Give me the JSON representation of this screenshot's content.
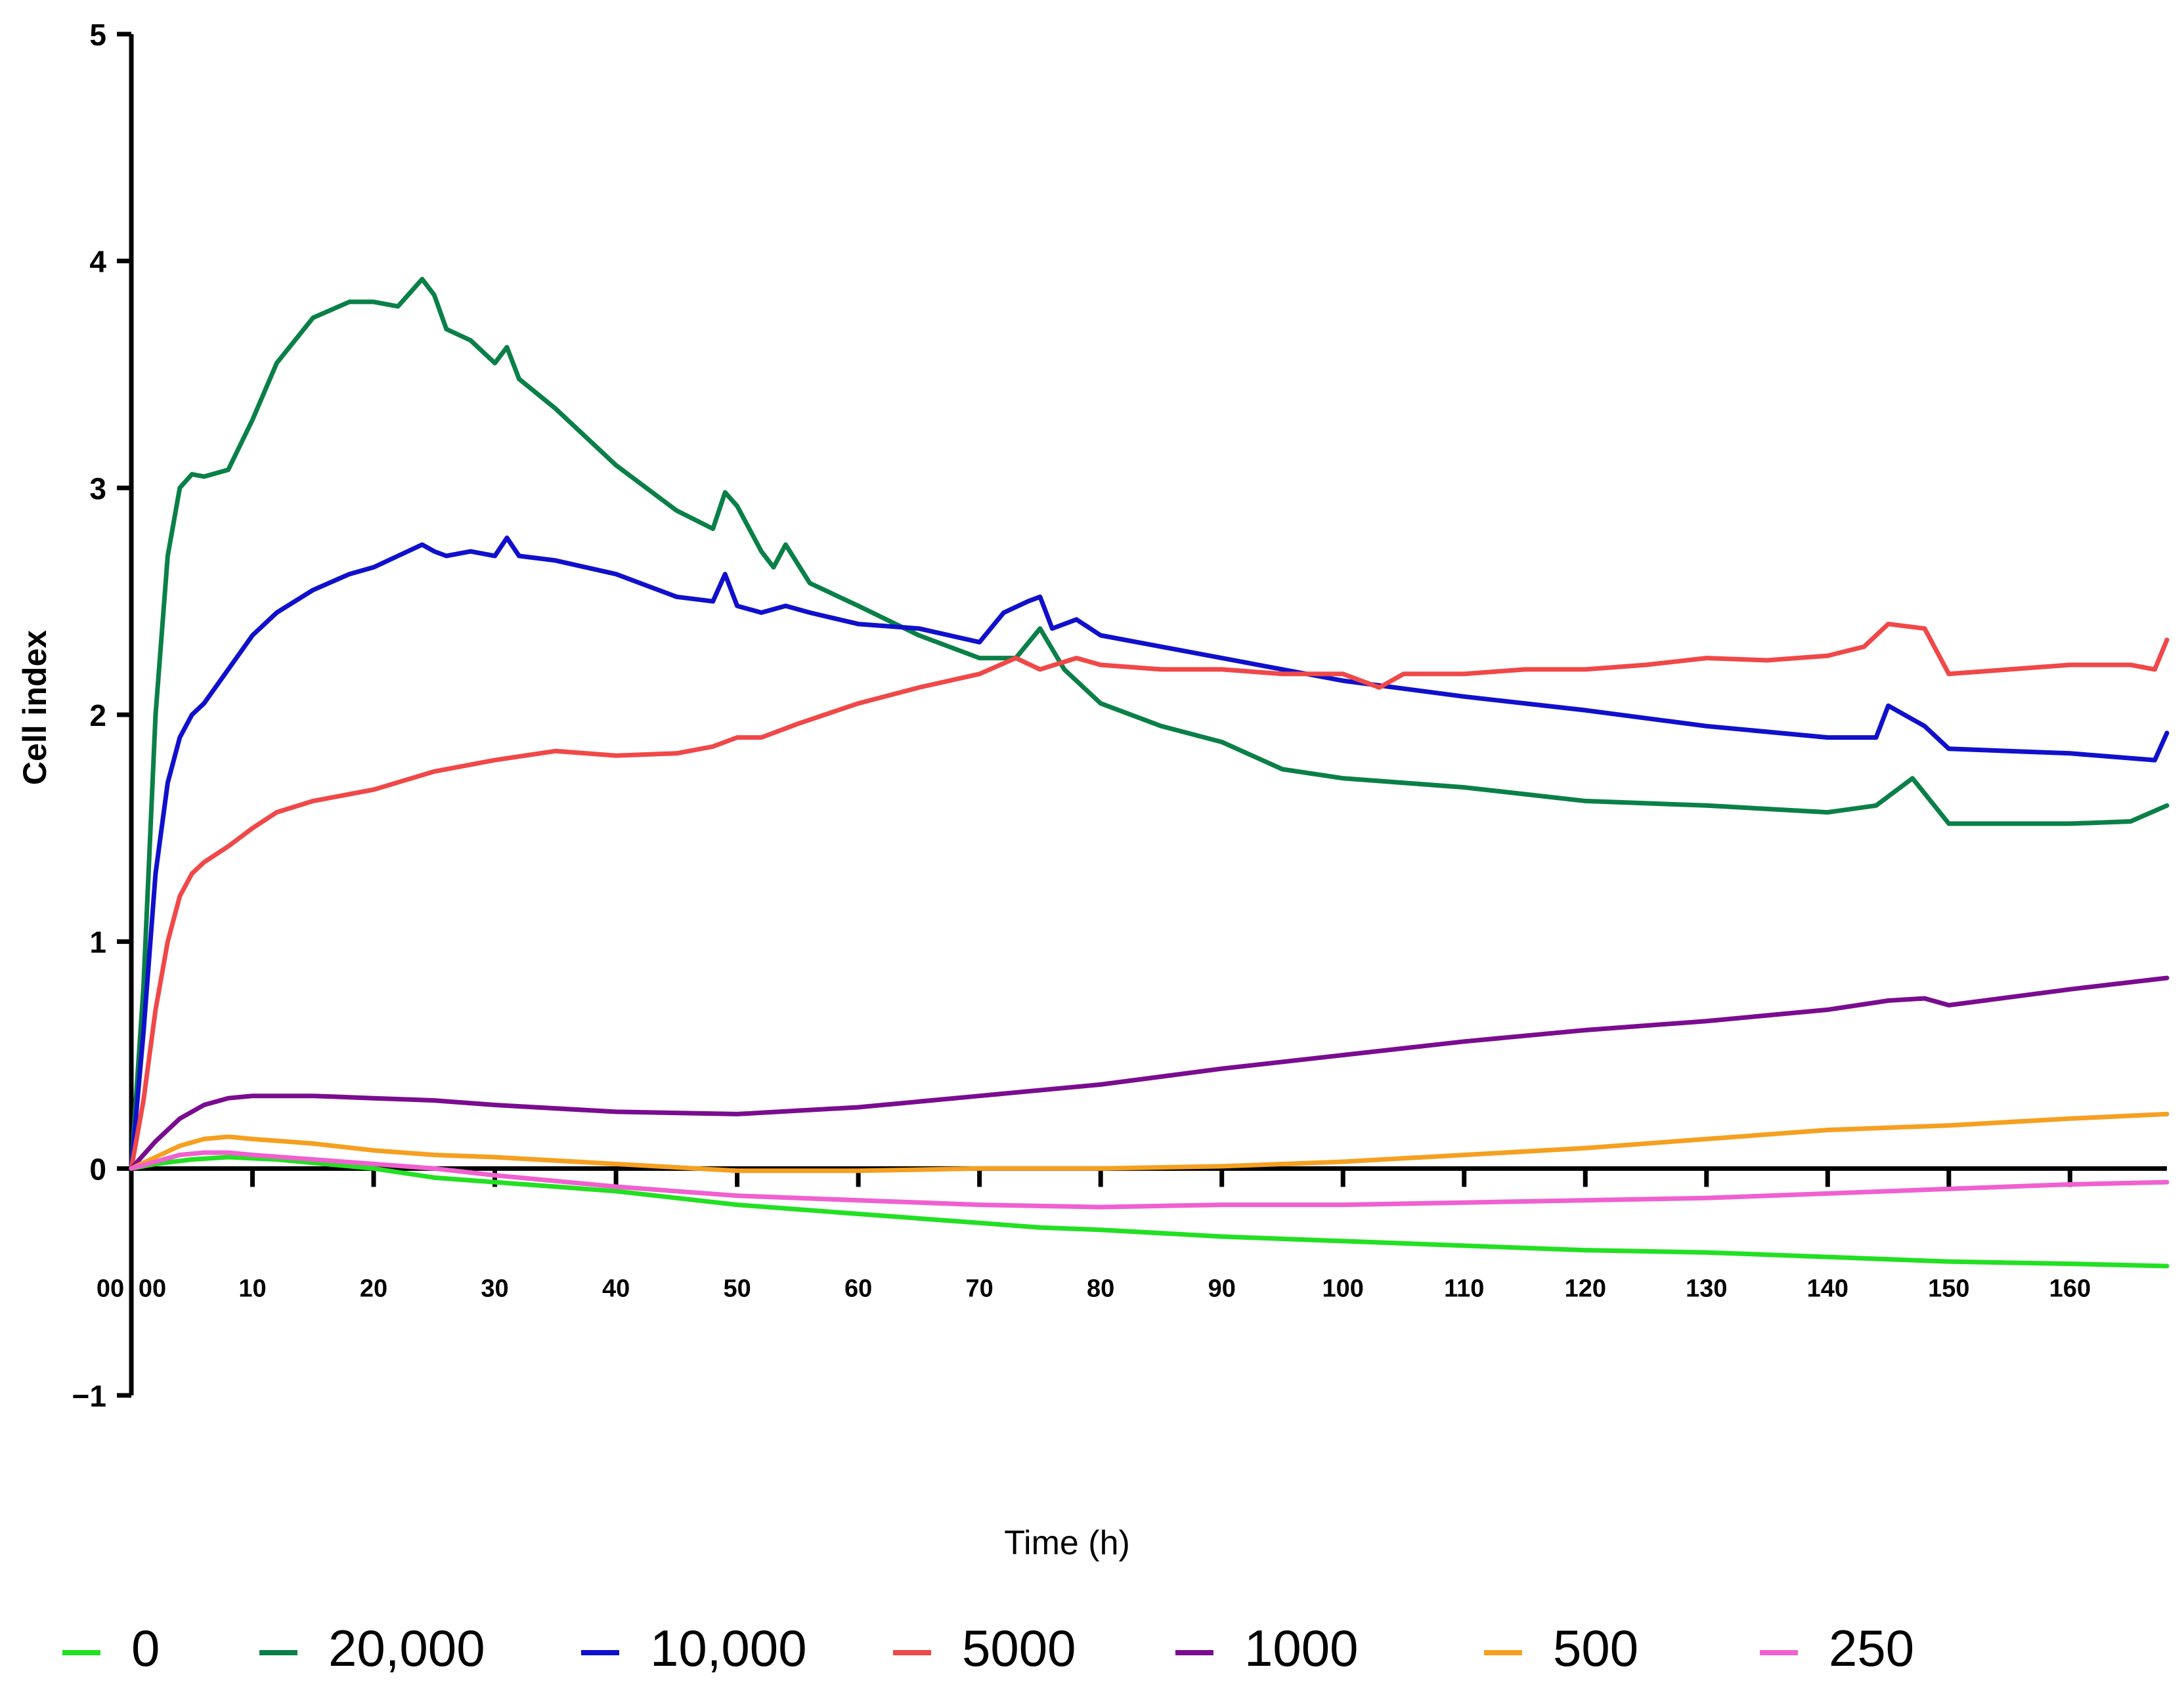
{
  "chart_data": {
    "type": "line",
    "title": "",
    "xlabel": "Time (h)",
    "ylabel": "Cell index",
    "xlim": [
      0,
      168
    ],
    "ylim": [
      -1,
      5
    ],
    "x_tick_labels": [
      "00",
      "00",
      "10",
      "20",
      "30",
      "40",
      "50",
      "60",
      "70",
      "80",
      "90",
      "100",
      "110",
      "120",
      "130",
      "140",
      "150",
      "160"
    ],
    "y_tick_labels": [
      "5",
      "4",
      "3",
      "2",
      "1",
      "0",
      "−1"
    ],
    "y_ticks": [
      5,
      4,
      3,
      2,
      1,
      0,
      -1
    ],
    "grid": false,
    "legend_position": "bottom",
    "series": [
      {
        "name": "0",
        "color": "#22e022",
        "x": [
          0,
          2,
          5,
          8,
          12,
          16,
          20,
          25,
          30,
          40,
          50,
          60,
          70,
          75,
          80,
          90,
          100,
          110,
          120,
          130,
          140,
          145,
          150,
          160,
          168
        ],
        "y": [
          0,
          0.02,
          0.04,
          0.05,
          0.04,
          0.02,
          0.0,
          -0.04,
          -0.06,
          -0.1,
          -0.16,
          -0.2,
          -0.24,
          -0.26,
          -0.27,
          -0.3,
          -0.32,
          -0.34,
          -0.36,
          -0.37,
          -0.39,
          -0.4,
          -0.41,
          -0.42,
          -0.43
        ]
      },
      {
        "name": "20,000",
        "color": "#0a8048",
        "x": [
          0,
          1,
          2,
          3,
          4,
          5,
          6,
          8,
          10,
          12,
          15,
          18,
          20,
          22,
          24,
          25,
          26,
          28,
          30,
          31,
          32,
          35,
          40,
          45,
          48,
          49,
          50,
          52,
          53,
          54,
          56,
          60,
          65,
          70,
          73,
          75,
          77,
          80,
          85,
          90,
          95,
          100,
          110,
          120,
          130,
          140,
          144,
          147,
          150,
          155,
          160,
          165,
          168
        ],
        "y": [
          0,
          0.8,
          2.0,
          2.7,
          3.0,
          3.06,
          3.05,
          3.08,
          3.3,
          3.55,
          3.75,
          3.82,
          3.82,
          3.8,
          3.92,
          3.85,
          3.7,
          3.65,
          3.55,
          3.62,
          3.48,
          3.35,
          3.1,
          2.9,
          2.82,
          2.98,
          2.92,
          2.72,
          2.65,
          2.75,
          2.58,
          2.48,
          2.35,
          2.25,
          2.25,
          2.38,
          2.2,
          2.05,
          1.95,
          1.88,
          1.76,
          1.72,
          1.68,
          1.62,
          1.6,
          1.57,
          1.6,
          1.72,
          1.52,
          1.52,
          1.52,
          1.53,
          1.6
        ]
      },
      {
        "name": "10,000",
        "color": "#1010cc",
        "x": [
          0,
          1,
          2,
          3,
          4,
          5,
          6,
          8,
          10,
          12,
          15,
          18,
          20,
          22,
          24,
          25,
          26,
          28,
          30,
          31,
          32,
          35,
          40,
          45,
          48,
          49,
          50,
          52,
          54,
          56,
          60,
          65,
          70,
          72,
          74,
          75,
          76,
          78,
          80,
          85,
          90,
          95,
          100,
          110,
          120,
          130,
          140,
          144,
          145,
          148,
          150,
          160,
          167,
          168
        ],
        "y": [
          0,
          0.6,
          1.3,
          1.7,
          1.9,
          2.0,
          2.05,
          2.2,
          2.35,
          2.45,
          2.55,
          2.62,
          2.65,
          2.7,
          2.75,
          2.72,
          2.7,
          2.72,
          2.7,
          2.78,
          2.7,
          2.68,
          2.62,
          2.52,
          2.5,
          2.62,
          2.48,
          2.45,
          2.48,
          2.45,
          2.4,
          2.38,
          2.32,
          2.45,
          2.5,
          2.52,
          2.38,
          2.42,
          2.35,
          2.3,
          2.25,
          2.2,
          2.15,
          2.08,
          2.02,
          1.95,
          1.9,
          1.9,
          2.04,
          1.95,
          1.85,
          1.83,
          1.8,
          1.92
        ]
      },
      {
        "name": "5000",
        "color": "#f04848",
        "x": [
          0,
          1,
          2,
          3,
          4,
          5,
          6,
          8,
          10,
          12,
          15,
          18,
          20,
          25,
          30,
          35,
          40,
          45,
          48,
          50,
          52,
          55,
          60,
          65,
          70,
          73,
          75,
          78,
          80,
          85,
          90,
          95,
          100,
          103,
          105,
          110,
          115,
          120,
          125,
          130,
          135,
          140,
          143,
          145,
          148,
          150,
          155,
          160,
          165,
          167,
          168
        ],
        "y": [
          0,
          0.3,
          0.7,
          1.0,
          1.2,
          1.3,
          1.35,
          1.42,
          1.5,
          1.57,
          1.62,
          1.65,
          1.67,
          1.75,
          1.8,
          1.84,
          1.82,
          1.83,
          1.86,
          1.9,
          1.9,
          1.96,
          2.05,
          2.12,
          2.18,
          2.25,
          2.2,
          2.25,
          2.22,
          2.2,
          2.2,
          2.18,
          2.18,
          2.12,
          2.18,
          2.18,
          2.2,
          2.2,
          2.22,
          2.25,
          2.24,
          2.26,
          2.3,
          2.4,
          2.38,
          2.18,
          2.2,
          2.22,
          2.22,
          2.2,
          2.33
        ]
      },
      {
        "name": "1000",
        "color": "#7a0c90",
        "x": [
          0,
          2,
          4,
          6,
          8,
          10,
          15,
          20,
          25,
          30,
          40,
          50,
          60,
          70,
          80,
          90,
          100,
          110,
          120,
          130,
          140,
          145,
          148,
          150,
          160,
          168
        ],
        "y": [
          0,
          0.12,
          0.22,
          0.28,
          0.31,
          0.32,
          0.32,
          0.31,
          0.3,
          0.28,
          0.25,
          0.24,
          0.27,
          0.32,
          0.37,
          0.44,
          0.5,
          0.56,
          0.61,
          0.65,
          0.7,
          0.74,
          0.75,
          0.72,
          0.79,
          0.84
        ]
      },
      {
        "name": "500",
        "color": "#f5a020",
        "x": [
          0,
          2,
          4,
          6,
          8,
          10,
          15,
          20,
          25,
          30,
          40,
          50,
          60,
          70,
          80,
          90,
          100,
          110,
          120,
          130,
          140,
          150,
          160,
          168
        ],
        "y": [
          0,
          0.05,
          0.1,
          0.13,
          0.14,
          0.13,
          0.11,
          0.08,
          0.06,
          0.05,
          0.02,
          -0.01,
          -0.01,
          0.0,
          0.0,
          0.01,
          0.03,
          0.06,
          0.09,
          0.13,
          0.17,
          0.19,
          0.22,
          0.24
        ]
      },
      {
        "name": "250",
        "color": "#f060d0",
        "x": [
          0,
          2,
          4,
          6,
          8,
          10,
          15,
          20,
          25,
          30,
          40,
          50,
          60,
          70,
          80,
          90,
          100,
          110,
          120,
          130,
          140,
          150,
          160,
          168
        ],
        "y": [
          0,
          0.03,
          0.06,
          0.07,
          0.07,
          0.06,
          0.04,
          0.02,
          0.0,
          -0.03,
          -0.08,
          -0.12,
          -0.14,
          -0.16,
          -0.17,
          -0.16,
          -0.16,
          -0.15,
          -0.14,
          -0.13,
          -0.11,
          -0.09,
          -0.07,
          -0.06
        ]
      }
    ]
  }
}
